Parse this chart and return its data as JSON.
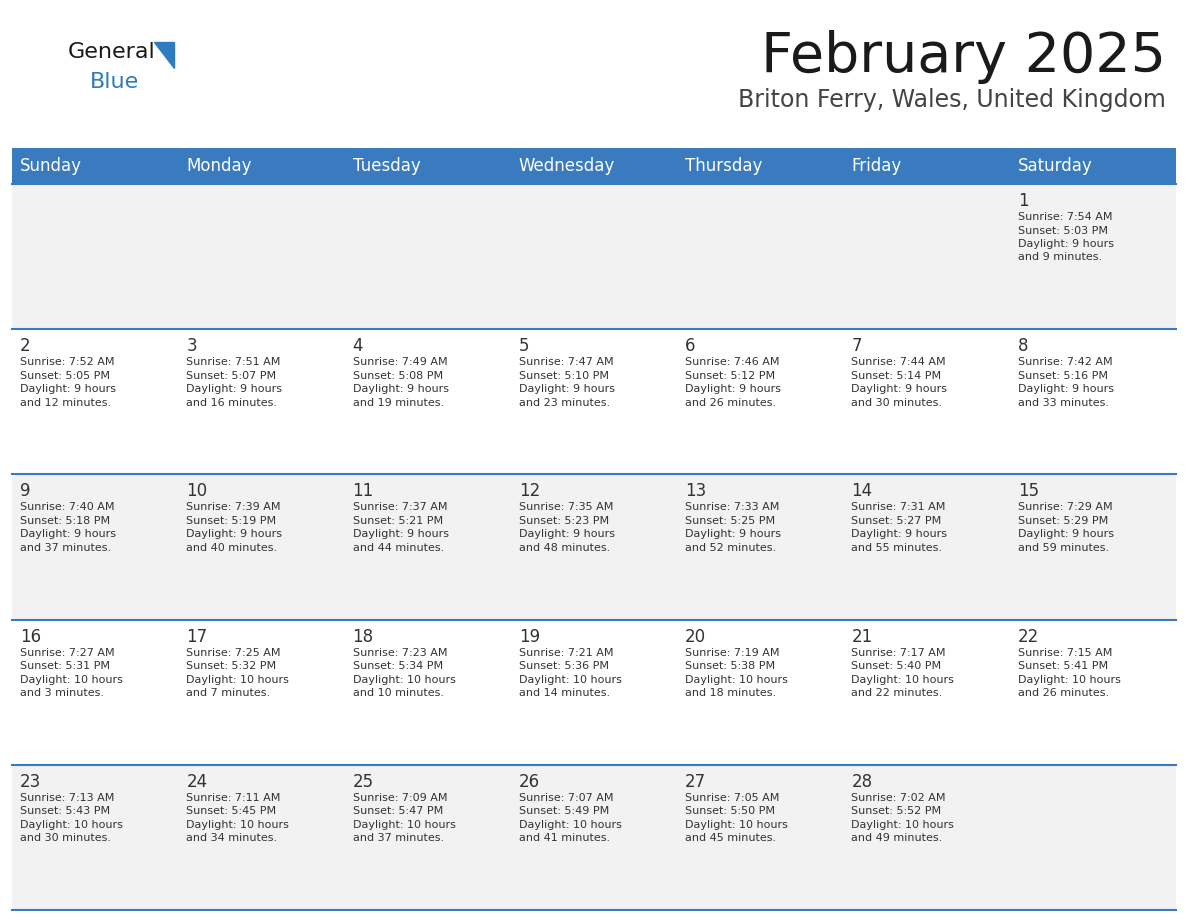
{
  "title": "February 2025",
  "subtitle": "Briton Ferry, Wales, United Kingdom",
  "days_of_week": [
    "Sunday",
    "Monday",
    "Tuesday",
    "Wednesday",
    "Thursday",
    "Friday",
    "Saturday"
  ],
  "header_bg": "#3a7abf",
  "header_text": "#ffffff",
  "cell_bg_odd": "#f2f2f2",
  "cell_bg_even": "#ffffff",
  "separator_color": "#3a7abf",
  "text_color": "#333333",
  "calendar_data": [
    [
      null,
      null,
      null,
      null,
      null,
      null,
      {
        "day": 1,
        "sunrise": "7:54 AM",
        "sunset": "5:03 PM",
        "daylight": "9 hours and 9 minutes."
      }
    ],
    [
      {
        "day": 2,
        "sunrise": "7:52 AM",
        "sunset": "5:05 PM",
        "daylight": "9 hours and 12 minutes."
      },
      {
        "day": 3,
        "sunrise": "7:51 AM",
        "sunset": "5:07 PM",
        "daylight": "9 hours and 16 minutes."
      },
      {
        "day": 4,
        "sunrise": "7:49 AM",
        "sunset": "5:08 PM",
        "daylight": "9 hours and 19 minutes."
      },
      {
        "day": 5,
        "sunrise": "7:47 AM",
        "sunset": "5:10 PM",
        "daylight": "9 hours and 23 minutes."
      },
      {
        "day": 6,
        "sunrise": "7:46 AM",
        "sunset": "5:12 PM",
        "daylight": "9 hours and 26 minutes."
      },
      {
        "day": 7,
        "sunrise": "7:44 AM",
        "sunset": "5:14 PM",
        "daylight": "9 hours and 30 minutes."
      },
      {
        "day": 8,
        "sunrise": "7:42 AM",
        "sunset": "5:16 PM",
        "daylight": "9 hours and 33 minutes."
      }
    ],
    [
      {
        "day": 9,
        "sunrise": "7:40 AM",
        "sunset": "5:18 PM",
        "daylight": "9 hours and 37 minutes."
      },
      {
        "day": 10,
        "sunrise": "7:39 AM",
        "sunset": "5:19 PM",
        "daylight": "9 hours and 40 minutes."
      },
      {
        "day": 11,
        "sunrise": "7:37 AM",
        "sunset": "5:21 PM",
        "daylight": "9 hours and 44 minutes."
      },
      {
        "day": 12,
        "sunrise": "7:35 AM",
        "sunset": "5:23 PM",
        "daylight": "9 hours and 48 minutes."
      },
      {
        "day": 13,
        "sunrise": "7:33 AM",
        "sunset": "5:25 PM",
        "daylight": "9 hours and 52 minutes."
      },
      {
        "day": 14,
        "sunrise": "7:31 AM",
        "sunset": "5:27 PM",
        "daylight": "9 hours and 55 minutes."
      },
      {
        "day": 15,
        "sunrise": "7:29 AM",
        "sunset": "5:29 PM",
        "daylight": "9 hours and 59 minutes."
      }
    ],
    [
      {
        "day": 16,
        "sunrise": "7:27 AM",
        "sunset": "5:31 PM",
        "daylight": "10 hours and 3 minutes."
      },
      {
        "day": 17,
        "sunrise": "7:25 AM",
        "sunset": "5:32 PM",
        "daylight": "10 hours and 7 minutes."
      },
      {
        "day": 18,
        "sunrise": "7:23 AM",
        "sunset": "5:34 PM",
        "daylight": "10 hours and 10 minutes."
      },
      {
        "day": 19,
        "sunrise": "7:21 AM",
        "sunset": "5:36 PM",
        "daylight": "10 hours and 14 minutes."
      },
      {
        "day": 20,
        "sunrise": "7:19 AM",
        "sunset": "5:38 PM",
        "daylight": "10 hours and 18 minutes."
      },
      {
        "day": 21,
        "sunrise": "7:17 AM",
        "sunset": "5:40 PM",
        "daylight": "10 hours and 22 minutes."
      },
      {
        "day": 22,
        "sunrise": "7:15 AM",
        "sunset": "5:41 PM",
        "daylight": "10 hours and 26 minutes."
      }
    ],
    [
      {
        "day": 23,
        "sunrise": "7:13 AM",
        "sunset": "5:43 PM",
        "daylight": "10 hours and 30 minutes."
      },
      {
        "day": 24,
        "sunrise": "7:11 AM",
        "sunset": "5:45 PM",
        "daylight": "10 hours and 34 minutes."
      },
      {
        "day": 25,
        "sunrise": "7:09 AM",
        "sunset": "5:47 PM",
        "daylight": "10 hours and 37 minutes."
      },
      {
        "day": 26,
        "sunrise": "7:07 AM",
        "sunset": "5:49 PM",
        "daylight": "10 hours and 41 minutes."
      },
      {
        "day": 27,
        "sunrise": "7:05 AM",
        "sunset": "5:50 PM",
        "daylight": "10 hours and 45 minutes."
      },
      {
        "day": 28,
        "sunrise": "7:02 AM",
        "sunset": "5:52 PM",
        "daylight": "10 hours and 49 minutes."
      },
      null
    ]
  ],
  "logo_triangle_color": "#2e7bbf",
  "fig_width": 11.88,
  "fig_height": 9.18,
  "dpi": 100
}
